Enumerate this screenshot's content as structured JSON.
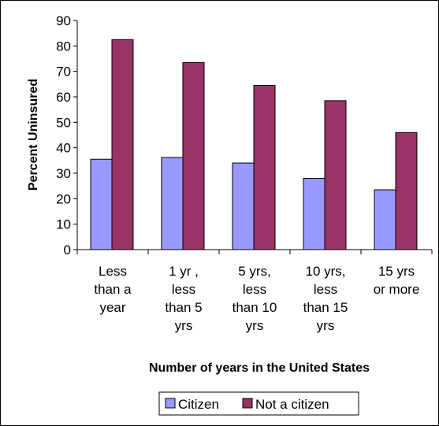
{
  "chart_data": {
    "type": "bar",
    "title": "",
    "xlabel": "Number of years in the United States",
    "ylabel": "Percent Uninsured",
    "ylim": [
      0,
      90
    ],
    "yticks": [
      0,
      10,
      20,
      30,
      40,
      50,
      60,
      70,
      80,
      90
    ],
    "categories": [
      [
        "Less",
        "than a",
        "year"
      ],
      [
        "1 yr ,",
        "less",
        "than 5",
        "yrs"
      ],
      [
        "5 yrs,",
        "less",
        "than 10",
        "yrs"
      ],
      [
        "10 yrs,",
        "less",
        "than 15",
        "yrs"
      ],
      [
        "15 yrs",
        "or more"
      ]
    ],
    "series": [
      {
        "name": "Citizen",
        "color": "#9999ff",
        "values": [
          35.5,
          36.2,
          34,
          28,
          23.5
        ]
      },
      {
        "name": "Not a citizen",
        "color": "#993366",
        "values": [
          82.5,
          73.5,
          64.5,
          58.5,
          46
        ]
      }
    ],
    "grid": false,
    "legend": "bottom"
  }
}
